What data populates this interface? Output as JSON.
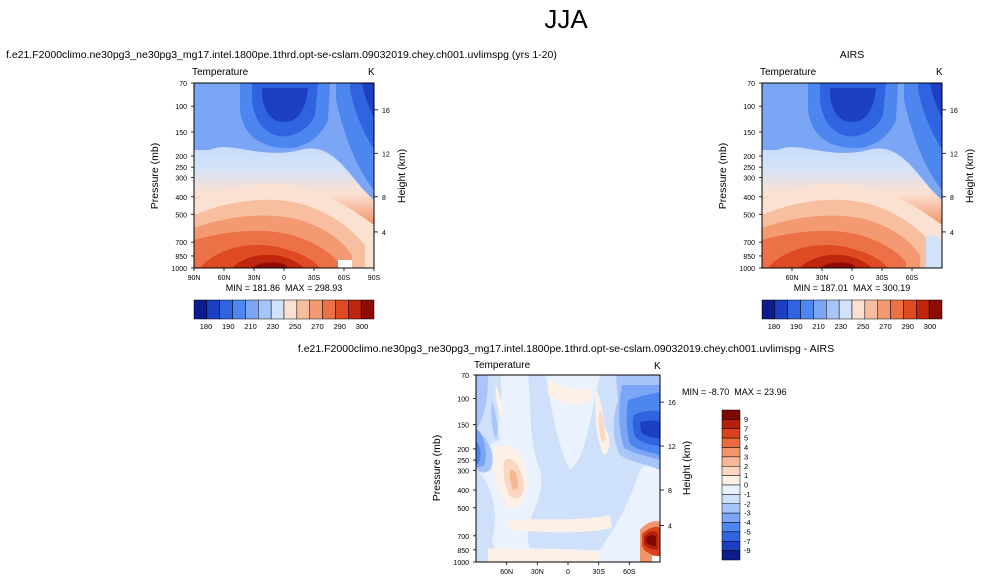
{
  "figure_title": "JJA",
  "chart_data": [
    {
      "type": "heatmap",
      "title": "f.e21.F2000climo.ne30pg3_ne30pg3_mg17.intel.1800pe.1thrd.opt-se-cslam.09032019.chey.ch001.uvlimspg (yrs 1-20)",
      "left_label": "Temperature",
      "right_label": "K",
      "ylabel": "Pressure (mb)",
      "y2label": "Height (km)",
      "pressure_ticks": [
        "70",
        "100",
        "150",
        "200",
        "250",
        "300",
        "400",
        "500",
        "700",
        "850",
        "1000"
      ],
      "lat_ticks": [
        "90N",
        "60N",
        "30N",
        "0",
        "30S",
        "60S",
        "90S"
      ],
      "height_ticks": [
        "16",
        "12",
        "8",
        "4"
      ],
      "min_label": "MIN = 181.86",
      "max_label": "MAX = 298.93",
      "min": 181.86,
      "max": 298.93,
      "colorbar_labels": [
        "180",
        "190",
        "210",
        "230",
        "250",
        "270",
        "290",
        "300"
      ],
      "colorbar_levels": [
        180,
        190,
        200,
        210,
        220,
        230,
        240,
        250,
        260,
        270,
        280,
        290,
        300
      ]
    },
    {
      "type": "heatmap",
      "title": "AIRS",
      "left_label": "Temperature",
      "right_label": "K",
      "ylabel": "Pressure (mb)",
      "y2label": "Height (km)",
      "pressure_ticks": [
        "70",
        "100",
        "150",
        "200",
        "250",
        "300",
        "400",
        "500",
        "700",
        "850",
        "1000"
      ],
      "lat_ticks": [
        "60N",
        "30N",
        "0",
        "30S",
        "60S"
      ],
      "height_ticks": [
        "16",
        "12",
        "8",
        "4"
      ],
      "min_label": "MIN = 187.01",
      "max_label": "MAX = 300.19",
      "min": 187.01,
      "max": 300.19,
      "colorbar_labels": [
        "180",
        "190",
        "210",
        "230",
        "250",
        "270",
        "290",
        "300"
      ],
      "colorbar_levels": [
        180,
        190,
        200,
        210,
        220,
        230,
        240,
        250,
        260,
        270,
        280,
        290,
        300
      ]
    },
    {
      "type": "heatmap",
      "title": "f.e21.F2000climo.ne30pg3_ne30pg3_mg17.intel.1800pe.1thrd.opt-se-cslam.09032019.chey.ch001.uvlimspg - AIRS",
      "left_label": "Temperature",
      "right_label": "K",
      "ylabel": "Pressure (mb)",
      "y2label": "Height (km)",
      "pressure_ticks": [
        "70",
        "100",
        "150",
        "200",
        "250",
        "300",
        "400",
        "500",
        "700",
        "850",
        "1000"
      ],
      "lat_ticks": [
        "60N",
        "30N",
        "0",
        "30S",
        "60S"
      ],
      "height_ticks": [
        "16",
        "12",
        "8",
        "4"
      ],
      "min_label": "MIN = -8.70",
      "max_label": "MAX = 23.96",
      "min": -8.7,
      "max": 23.96,
      "colorbar_labels": [
        "9",
        "7",
        "5",
        "4",
        "3",
        "2",
        "1",
        "0",
        "-1",
        "-2",
        "-3",
        "-4",
        "-5",
        "-7",
        "-9"
      ],
      "colorbar_levels": [
        -9,
        -7,
        -5,
        -4,
        -3,
        -2,
        -1,
        0,
        1,
        2,
        3,
        4,
        5,
        7,
        9
      ]
    }
  ],
  "colors": {
    "temperature_scale": [
      "#0d1c8c",
      "#1c3fc4",
      "#2f63e0",
      "#4d86ee",
      "#7ba6f5",
      "#a8c5f9",
      "#d2e2fb",
      "#fbe1d2",
      "#f8bea0",
      "#f39a72",
      "#ec7147",
      "#de4a21",
      "#c0260d",
      "#8e0b05"
    ],
    "difference_scale": [
      "#0d1c8c",
      "#1c3fc4",
      "#2f63e0",
      "#4d86ee",
      "#7ba6f5",
      "#a8c5f9",
      "#cfe0fb",
      "#eaf2fd",
      "#fdf0e6",
      "#fbd6c0",
      "#f8b896",
      "#f3956b",
      "#e96a3f",
      "#d8431c",
      "#b52108",
      "#7e0804"
    ]
  }
}
